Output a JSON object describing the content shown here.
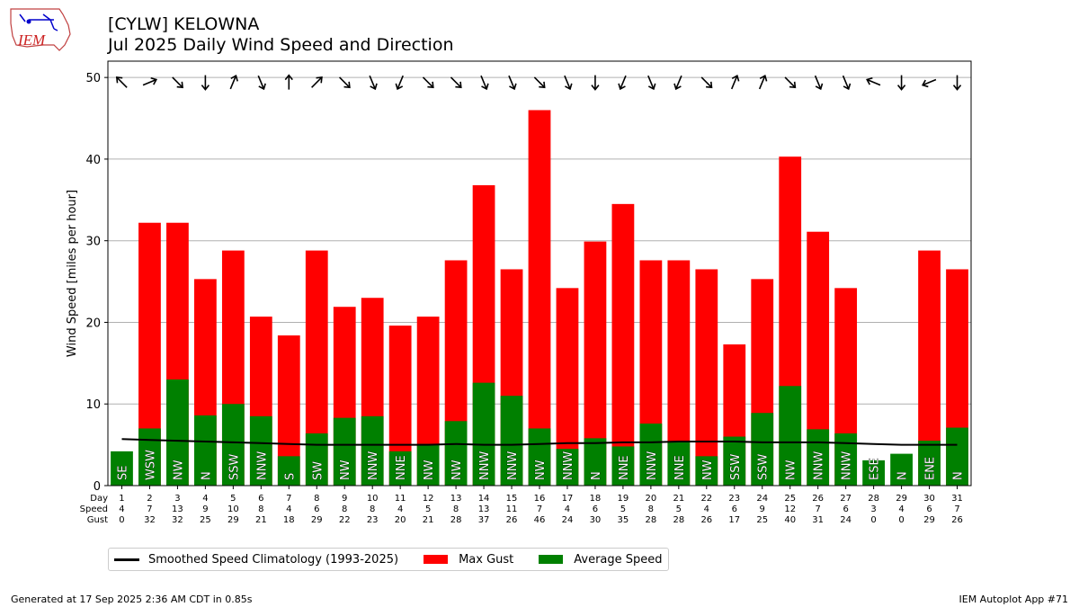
{
  "header": {
    "title": "[CYLW] KELOWNA",
    "subtitle": "Jul 2025 Daily Wind Speed and Direction",
    "logo_text": "IEM"
  },
  "footer": {
    "generated": "Generated at 17 Sep 2025 2:36 AM CDT in 0.85s",
    "app": "IEM Autoplot App #71"
  },
  "legend": {
    "climatology": "Smoothed Speed Climatology (1993-2025)",
    "gust": "Max Gust",
    "average": "Average Speed"
  },
  "colors": {
    "gust": "#ff0000",
    "average": "#008000",
    "climatology": "#000000"
  },
  "chart_data": {
    "type": "bar",
    "ylabel": "Wind Speed [miles per hour]",
    "ylim": [
      0,
      52
    ],
    "yticks": [
      0,
      10,
      20,
      30,
      40,
      50
    ],
    "grid": true,
    "legend_position": "below",
    "row_labels": [
      "Day",
      "Speed",
      "Gust"
    ],
    "days": [
      1,
      2,
      3,
      4,
      5,
      6,
      7,
      8,
      9,
      10,
      11,
      12,
      13,
      14,
      15,
      16,
      17,
      18,
      19,
      20,
      21,
      22,
      23,
      24,
      25,
      26,
      27,
      28,
      29,
      30,
      31
    ],
    "speed_labels": [
      4,
      7,
      13,
      9,
      10,
      8,
      4,
      6,
      8,
      8,
      4,
      5,
      8,
      13,
      11,
      7,
      4,
      6,
      5,
      8,
      5,
      4,
      6,
      9,
      12,
      7,
      6,
      3,
      4,
      6,
      7
    ],
    "gust_labels": [
      0,
      32,
      32,
      25,
      29,
      21,
      18,
      29,
      22,
      23,
      20,
      21,
      28,
      37,
      26,
      46,
      24,
      30,
      35,
      28,
      28,
      26,
      17,
      25,
      40,
      31,
      24,
      0,
      0,
      29,
      26
    ],
    "series": [
      {
        "name": "Max Gust",
        "values": [
          0,
          32.2,
          32.2,
          25.3,
          28.8,
          20.7,
          18.4,
          28.8,
          21.9,
          23.0,
          19.6,
          20.7,
          27.6,
          36.8,
          26.5,
          46.0,
          24.2,
          29.9,
          34.5,
          27.6,
          27.6,
          26.5,
          17.3,
          25.3,
          40.3,
          31.1,
          24.2,
          0,
          0,
          28.8,
          26.5
        ]
      },
      {
        "name": "Average Speed",
        "values": [
          4.2,
          7.0,
          13.0,
          8.6,
          10.0,
          8.5,
          3.6,
          6.4,
          8.3,
          8.5,
          4.2,
          5.1,
          7.9,
          12.6,
          11.0,
          7.0,
          4.5,
          5.8,
          4.8,
          7.6,
          5.4,
          3.6,
          6.0,
          8.9,
          12.2,
          6.9,
          6.4,
          3.1,
          3.9,
          5.5,
          7.1
        ]
      },
      {
        "name": "Smoothed Speed Climatology (1993-2025)",
        "values": [
          5.7,
          5.6,
          5.5,
          5.4,
          5.3,
          5.2,
          5.1,
          5.0,
          5.0,
          5.0,
          5.0,
          5.0,
          5.1,
          5.0,
          5.0,
          5.1,
          5.2,
          5.2,
          5.3,
          5.3,
          5.4,
          5.4,
          5.4,
          5.3,
          5.3,
          5.3,
          5.2,
          5.1,
          5.0,
          5.0,
          5.0
        ]
      }
    ],
    "direction_labels": [
      "SE",
      "WSW",
      "NW",
      "N",
      "SSW",
      "NNW",
      "S",
      "SW",
      "NW",
      "NNW",
      "NNE",
      "NW",
      "NW",
      "NNW",
      "NNW",
      "NW",
      "NNW",
      "N",
      "NNE",
      "NNW",
      "NNE",
      "NW",
      "SSW",
      "SSW",
      "NW",
      "NNW",
      "NNW",
      "ESE",
      "N",
      "ENE",
      "N"
    ],
    "arrow_directions_deg": [
      135,
      247.5,
      315,
      0,
      202.5,
      337.5,
      180,
      225,
      315,
      337.5,
      22.5,
      315,
      315,
      337.5,
      337.5,
      315,
      337.5,
      0,
      22.5,
      337.5,
      22.5,
      315,
      202.5,
      202.5,
      315,
      337.5,
      337.5,
      112.5,
      0,
      67.5,
      0
    ]
  }
}
